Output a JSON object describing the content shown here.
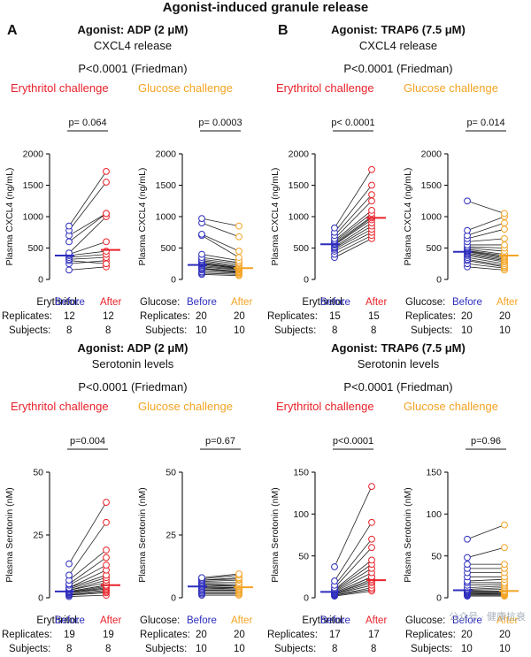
{
  "title": "Agonist-induced granule release",
  "panel_a": "A",
  "panel_b": "B",
  "colors": {
    "erythritol": "#e8222a",
    "glucose": "#f4a323",
    "before": "#2d2dbd",
    "line": "#222222"
  },
  "watermark": "公众号 · 健康抗衰",
  "quadrants": [
    {
      "agonist": "Agonist: ADP (2 μM)",
      "measure": "CXCL4 release",
      "stat": "P<0.0001 (Friedman)",
      "erythritol_label": "Erythritol challenge",
      "glucose_label": "Glucose challenge",
      "table": {
        "left_group": "Erythritol:",
        "right_group": "Glucose:",
        "before": "Before",
        "after": "After",
        "replicates_label": "Replicates:",
        "subjects_label": "Subjects:",
        "left_replicates": [
          "12",
          "12"
        ],
        "left_subjects": [
          "8",
          "8"
        ],
        "right_replicates": [
          "20",
          "20"
        ],
        "right_subjects": [
          "10",
          "10"
        ]
      }
    },
    {
      "agonist": "Agonist: TRAP6 (7.5 μM)",
      "measure": "CXCL4 release",
      "stat": "P<0.0001 (Friedman)",
      "erythritol_label": "Erythritol challenge",
      "glucose_label": "Glucose challenge",
      "table": {
        "left_group": "Erythritol:",
        "right_group": "Glucose:",
        "before": "Before",
        "after": "After",
        "replicates_label": "Replicates:",
        "subjects_label": "Subjects:",
        "left_replicates": [
          "15",
          "15"
        ],
        "left_subjects": [
          "8",
          "8"
        ],
        "right_replicates": [
          "20",
          "20"
        ],
        "right_subjects": [
          "10",
          "10"
        ]
      }
    },
    {
      "agonist": "Agonist: ADP (2 μM)",
      "measure": "Serotonin levels",
      "stat": "P<0.0001 (Friedman)",
      "erythritol_label": "Erythritol challenge",
      "glucose_label": "Glucose challenge",
      "table": {
        "left_group": "Erythritol:",
        "right_group": "Glucose:",
        "before": "Before",
        "after": "After",
        "replicates_label": "Replicates:",
        "subjects_label": "Subjects:",
        "left_replicates": [
          "19",
          "19"
        ],
        "left_subjects": [
          "8",
          "8"
        ],
        "right_replicates": [
          "20",
          "20"
        ],
        "right_subjects": [
          "10",
          "10"
        ]
      }
    },
    {
      "agonist": "Agonist: TRAP6 (7.5 μM)",
      "measure": "Serotonin levels",
      "stat": "P<0.0001 (Friedman)",
      "erythritol_label": "Erythritol challenge",
      "glucose_label": "Glucose challenge",
      "table": {
        "left_group": "Erythritol:",
        "right_group": "Glucose:",
        "before": "Before",
        "after": "After",
        "replicates_label": "Replicates:",
        "subjects_label": "Subjects:",
        "left_replicates": [
          "17",
          "17"
        ],
        "left_subjects": [
          "8",
          "8"
        ],
        "right_replicates": [
          "20",
          "20"
        ],
        "right_subjects": [
          "10",
          "10"
        ]
      }
    }
  ],
  "chart_data": [
    {
      "type": "scatter",
      "panel": "A",
      "challenge": "Erythritol",
      "ylabel": "Plasma CXCL4 (ng/mL)",
      "ylim": [
        0,
        2000
      ],
      "yticks": [
        0,
        500,
        1000,
        1500,
        2000
      ],
      "p_value": "p= 0.064",
      "categories": [
        "Before",
        "After"
      ],
      "before": [
        150,
        250,
        300,
        320,
        350,
        380,
        400,
        420,
        600,
        700,
        780,
        850
      ],
      "after": [
        200,
        300,
        250,
        350,
        400,
        450,
        600,
        1000,
        1050,
        1050,
        1550,
        1720
      ],
      "median_before": 380,
      "median_after": 470
    },
    {
      "type": "scatter",
      "panel": "A",
      "challenge": "Glucose",
      "ylabel": "Plasma CXCL4 (ng/mL)",
      "ylim": [
        0,
        2000
      ],
      "yticks": [
        0,
        500,
        1000,
        1500,
        2000
      ],
      "p_value": "p= 0.0003",
      "categories": [
        "Before",
        "After"
      ],
      "before": [
        80,
        100,
        120,
        150,
        170,
        180,
        200,
        220,
        240,
        250,
        260,
        280,
        300,
        320,
        350,
        400,
        700,
        720,
        900,
        970
      ],
      "after": [
        60,
        80,
        100,
        110,
        120,
        130,
        150,
        160,
        170,
        180,
        190,
        200,
        220,
        250,
        270,
        300,
        350,
        450,
        680,
        850
      ],
      "median_before": 230,
      "median_after": 180
    },
    {
      "type": "scatter",
      "panel": "B",
      "challenge": "Erythritol",
      "ylabel": "Plasma CXCL4 (ng/mL)",
      "ylim": [
        0,
        2000
      ],
      "yticks": [
        0,
        500,
        1000,
        1500,
        2000
      ],
      "p_value": "p< 0.0001",
      "categories": [
        "Before",
        "After"
      ],
      "before": [
        350,
        400,
        450,
        480,
        500,
        520,
        550,
        560,
        580,
        600,
        620,
        650,
        700,
        750,
        820
      ],
      "after": [
        650,
        700,
        750,
        800,
        850,
        900,
        950,
        980,
        1000,
        1050,
        1100,
        1250,
        1350,
        1500,
        1750
      ],
      "median_before": 560,
      "median_after": 980
    },
    {
      "type": "scatter",
      "panel": "B",
      "challenge": "Glucose",
      "ylabel": "Plasma CXCL4 (ng/mL)",
      "ylim": [
        0,
        2000
      ],
      "yticks": [
        0,
        500,
        1000,
        1500,
        2000
      ],
      "p_value": "p= 0.014",
      "categories": [
        "Before",
        "After"
      ],
      "before": [
        200,
        250,
        300,
        320,
        350,
        380,
        400,
        420,
        440,
        450,
        460,
        480,
        500,
        520,
        550,
        600,
        650,
        700,
        780,
        1250
      ],
      "after": [
        150,
        180,
        200,
        220,
        250,
        280,
        300,
        320,
        340,
        360,
        380,
        400,
        450,
        500,
        550,
        650,
        800,
        900,
        1000,
        1050
      ],
      "median_before": 440,
      "median_after": 380
    },
    {
      "type": "scatter",
      "panel": "A",
      "challenge": "Erythritol",
      "ylabel": "Plasma Serotonin (nM)",
      "ylim": [
        0,
        50
      ],
      "yticks": [
        0,
        25,
        50
      ],
      "p_value": "p=0.004",
      "categories": [
        "Before",
        "After"
      ],
      "before": [
        0.5,
        1,
        1.2,
        1.5,
        2,
        2,
        2.2,
        2.5,
        2.5,
        3,
        3,
        3.5,
        4,
        4,
        5,
        5.5,
        7,
        9,
        13.5
      ],
      "after": [
        1,
        2,
        2.5,
        3,
        3.5,
        4,
        4.5,
        5,
        5,
        6,
        7,
        8,
        9,
        11,
        13,
        16,
        19,
        30,
        38
      ],
      "median_before": 2.5,
      "median_after": 5
    },
    {
      "type": "scatter",
      "panel": "A",
      "challenge": "Glucose",
      "ylabel": "Plasma Serotonin (nM)",
      "ylim": [
        0,
        50
      ],
      "yticks": [
        0,
        25,
        50
      ],
      "p_value": "p=0.67",
      "categories": [
        "Before",
        "After"
      ],
      "before": [
        1,
        1.5,
        2,
        2.5,
        3,
        3,
        3.5,
        4,
        4,
        4.5,
        5,
        5,
        5.5,
        6,
        6,
        6.5,
        7,
        7,
        7.5,
        8
      ],
      "after": [
        1,
        1.5,
        2,
        2.5,
        3,
        3,
        3.5,
        3.5,
        4,
        4,
        4.5,
        5,
        5,
        6,
        6,
        7,
        7.5,
        8,
        9,
        9.5
      ],
      "median_before": 4.5,
      "median_after": 4.2
    },
    {
      "type": "scatter",
      "panel": "B",
      "challenge": "Erythritol",
      "ylabel": "Plasma Serotonin (nM)",
      "ylim": [
        0,
        150
      ],
      "yticks": [
        0,
        50,
        100,
        150
      ],
      "p_value": "p<0.0001",
      "categories": [
        "Before",
        "After"
      ],
      "before": [
        2,
        3,
        3,
        4,
        4,
        5,
        5,
        6,
        6,
        7,
        8,
        9,
        10,
        12,
        15,
        20,
        37
      ],
      "after": [
        8,
        10,
        12,
        15,
        18,
        20,
        22,
        25,
        25,
        30,
        35,
        40,
        45,
        60,
        70,
        90,
        133
      ],
      "median_before": 7,
      "median_after": 21
    },
    {
      "type": "scatter",
      "panel": "B",
      "challenge": "Glucose",
      "ylabel": "Plasma Serotonin (nM)",
      "ylim": [
        0,
        150
      ],
      "yticks": [
        0,
        50,
        100,
        150
      ],
      "p_value": "p=0.96",
      "categories": [
        "Before",
        "After"
      ],
      "before": [
        2,
        3,
        4,
        5,
        5,
        6,
        7,
        8,
        9,
        10,
        12,
        15,
        18,
        20,
        25,
        30,
        35,
        40,
        48,
        70
      ],
      "after": [
        2,
        3,
        4,
        4,
        5,
        6,
        7,
        8,
        10,
        12,
        14,
        16,
        18,
        22,
        25,
        30,
        35,
        40,
        60,
        87
      ],
      "median_before": 9,
      "median_after": 8
    }
  ]
}
